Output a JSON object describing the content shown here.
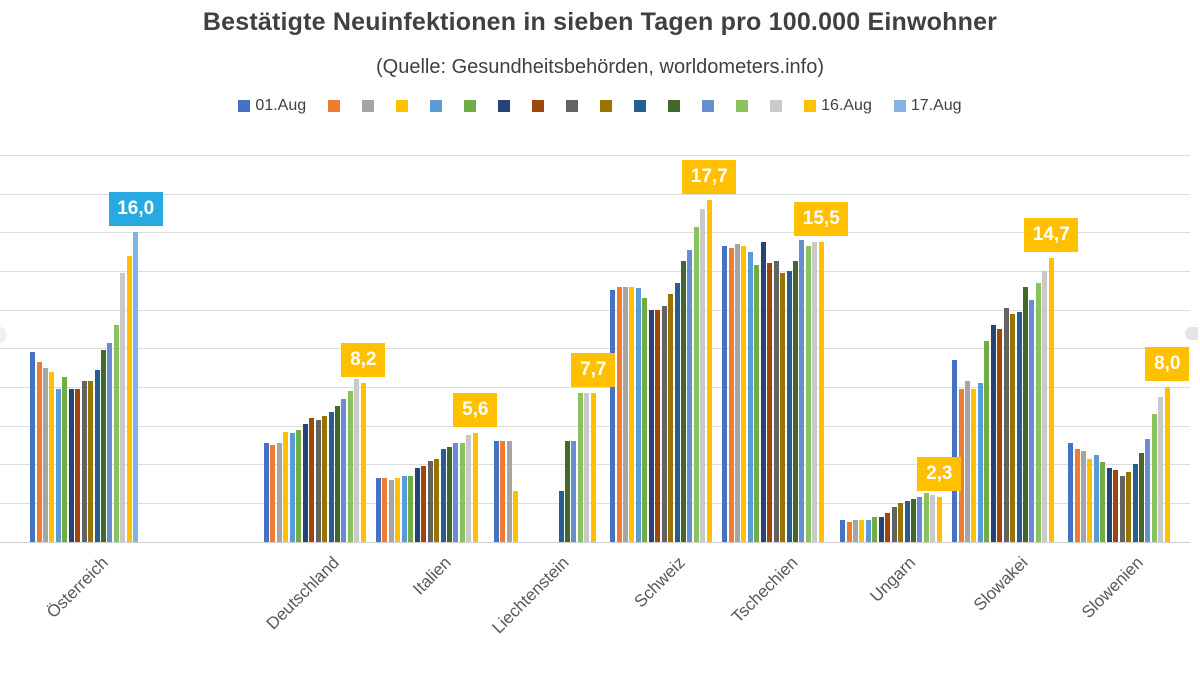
{
  "chart_data": {
    "type": "bar",
    "title": "Bestätigte Neuinfektionen in sieben Tagen pro 100.000 Einwohner",
    "subtitle": "(Quelle: Gesundheitsbehörden, worldometers.info)",
    "ylim": [
      0,
      20
    ],
    "grid": {
      "show": true,
      "step": 2,
      "color": "#DCDCDC"
    },
    "legend_position": "top",
    "categories": [
      "Österreich",
      "Deutschland",
      "Italien",
      "Liechtenstein",
      "Schweiz",
      "Tschechien",
      "Ungarn",
      "Slowakei",
      "Slowenien"
    ],
    "series": [
      {
        "legend_label": "01.Aug",
        "color": "#4472C4",
        "values": [
          9.8,
          5.1,
          3.3,
          5.2,
          13.0,
          15.3,
          1.1,
          9.4,
          5.1
        ]
      },
      {
        "legend_label": "",
        "color": "#ED7D31",
        "values": [
          9.3,
          5.0,
          3.3,
          5.2,
          13.2,
          15.2,
          1.0,
          7.9,
          4.8
        ]
      },
      {
        "legend_label": "",
        "color": "#A5A5A5",
        "values": [
          9.0,
          5.1,
          3.2,
          5.2,
          13.2,
          15.4,
          1.1,
          8.3,
          4.7
        ]
      },
      {
        "legend_label": "",
        "color": "#FFC000",
        "values": [
          8.8,
          5.7,
          3.3,
          2.6,
          13.2,
          15.3,
          1.1,
          7.9,
          4.3
        ]
      },
      {
        "legend_label": "",
        "color": "#5B9BD5",
        "values": [
          7.9,
          5.6,
          3.4,
          0,
          13.1,
          15.0,
          1.1,
          8.2,
          4.5
        ]
      },
      {
        "legend_label": "",
        "color": "#70AD47",
        "values": [
          8.5,
          5.8,
          3.4,
          0,
          12.6,
          14.3,
          1.3,
          10.4,
          4.1
        ]
      },
      {
        "legend_label": "",
        "color": "#264478",
        "values": [
          7.9,
          6.1,
          3.8,
          0,
          12.0,
          15.5,
          1.3,
          11.2,
          3.8
        ]
      },
      {
        "legend_label": "",
        "color": "#9E480E",
        "values": [
          7.9,
          6.4,
          3.9,
          0,
          12.0,
          14.4,
          1.5,
          11.0,
          3.7
        ]
      },
      {
        "legend_label": "",
        "color": "#636363",
        "values": [
          8.3,
          6.3,
          4.2,
          0,
          12.2,
          14.5,
          1.8,
          12.1,
          3.4
        ]
      },
      {
        "legend_label": "",
        "color": "#997300",
        "values": [
          8.3,
          6.5,
          4.3,
          0,
          12.8,
          13.9,
          2.0,
          11.8,
          3.6
        ]
      },
      {
        "legend_label": "",
        "color": "#255E91",
        "values": [
          8.9,
          6.7,
          4.8,
          2.6,
          13.4,
          14.0,
          2.1,
          11.9,
          4.0
        ]
      },
      {
        "legend_label": "",
        "color": "#43682B",
        "values": [
          9.9,
          7.0,
          4.9,
          5.2,
          14.5,
          14.5,
          2.2,
          13.2,
          4.6
        ]
      },
      {
        "legend_label": "",
        "color": "#698ED0",
        "values": [
          10.3,
          7.4,
          5.1,
          5.2,
          15.1,
          15.6,
          2.3,
          12.5,
          5.3
        ]
      },
      {
        "legend_label": "",
        "color": "#8CC15F",
        "values": [
          11.2,
          7.8,
          5.1,
          7.7,
          16.3,
          15.3,
          2.5,
          13.4,
          6.6
        ]
      },
      {
        "legend_label": "",
        "color": "#C9C9C9",
        "values": [
          13.9,
          8.4,
          5.5,
          7.7,
          17.2,
          15.5,
          2.4,
          14.0,
          7.5
        ]
      },
      {
        "legend_label": "16.Aug",
        "color": "#FFC000",
        "values": [
          14.8,
          8.2,
          5.6,
          7.7,
          17.7,
          15.5,
          2.3,
          14.7,
          8.0
        ]
      },
      {
        "legend_label": "17.Aug",
        "color": "#82B4E2",
        "values": [
          16.0,
          null,
          null,
          null,
          null,
          null,
          null,
          null,
          null
        ]
      }
    ],
    "data_labels": [
      {
        "category": "Österreich",
        "text": "16,0",
        "box_color": "#29A9E1",
        "text_color": "#FFFFFF"
      },
      {
        "category": "Deutschland",
        "text": "8,2",
        "box_color": "#FFC000",
        "text_color": "#FFFFFF"
      },
      {
        "category": "Italien",
        "text": "5,6",
        "box_color": "#FFC000",
        "text_color": "#FFFFFF"
      },
      {
        "category": "Liechtenstein",
        "text": "7,7",
        "box_color": "#FFC000",
        "text_color": "#FFFFFF"
      },
      {
        "category": "Schweiz",
        "text": "17,7",
        "box_color": "#FFC000",
        "text_color": "#FFFFFF"
      },
      {
        "category": "Tschechien",
        "text": "15,5",
        "box_color": "#FFC000",
        "text_color": "#FFFFFF"
      },
      {
        "category": "Ungarn",
        "text": "2,3",
        "box_color": "#FFC000",
        "text_color": "#FFFFFF"
      },
      {
        "category": "Slowakei",
        "text": "14,7",
        "box_color": "#FFC000",
        "text_color": "#FFFFFF"
      },
      {
        "category": "Slowenien",
        "text": "8,0",
        "box_color": "#FFC000",
        "text_color": "#FFFFFF"
      }
    ]
  }
}
